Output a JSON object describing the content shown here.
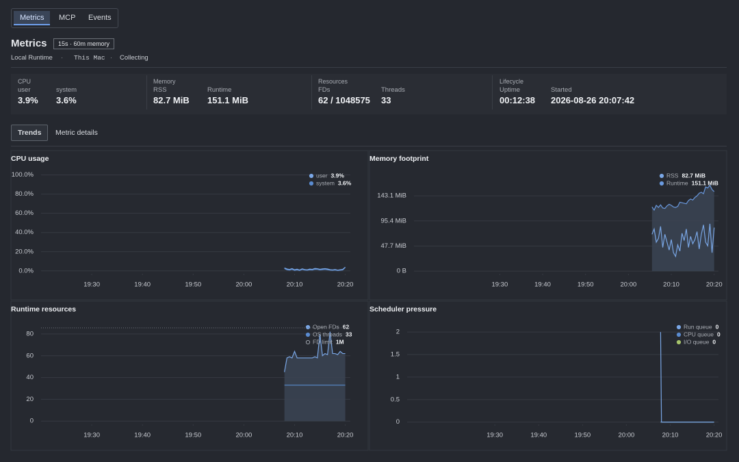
{
  "tabs": [
    "Metrics",
    "MCP",
    "Events"
  ],
  "header": {
    "title": "Metrics",
    "badge": "15s · 60m memory",
    "subtitle": [
      "Local Runtime",
      "This Mac",
      "Collecting"
    ]
  },
  "stats": [
    {
      "label": "CPU",
      "items": [
        {
          "label": "user",
          "value": "3.9%"
        },
        {
          "label": "system",
          "value": "3.6%"
        }
      ]
    },
    {
      "label": "Memory",
      "items": [
        {
          "label": "RSS",
          "value": "82.7 MiB"
        },
        {
          "label": "Runtime",
          "value": "151.1 MiB"
        }
      ]
    },
    {
      "label": "Resources",
      "items": [
        {
          "label": "FDs",
          "value": "62 / 1048575"
        },
        {
          "label": "Threads",
          "value": "33"
        }
      ]
    },
    {
      "label": "Lifecycle",
      "items": [
        {
          "label": "Uptime",
          "value": "00:12:38"
        },
        {
          "label": "Started",
          "value": "2026-08-26 20:07:42"
        }
      ]
    }
  ],
  "subtabs": [
    "Trends",
    "Metric details"
  ],
  "chart_data": [
    {
      "type": "line",
      "title": "CPU usage",
      "x": [
        1208,
        1208.5,
        1209,
        1209.5,
        1210,
        1210.5,
        1211,
        1211.5,
        1212,
        1212.5,
        1213,
        1213.5,
        1214,
        1214.5,
        1215,
        1215.5,
        1216,
        1216.5,
        1217,
        1217.5,
        1218,
        1218.5,
        1219,
        1219.5,
        1220
      ],
      "xlim": [
        1160,
        1221
      ],
      "xticks": [
        {
          "value": 1170,
          "label": "19:30"
        },
        {
          "value": 1180,
          "label": "19:40"
        },
        {
          "value": 1190,
          "label": "19:50"
        },
        {
          "value": 1200,
          "label": "20:00"
        },
        {
          "value": 1210,
          "label": "20:10"
        },
        {
          "value": 1220,
          "label": "20:20"
        }
      ],
      "ylim": [
        -3,
        104
      ],
      "yticks": [
        {
          "value": 0,
          "label": "0.0%"
        },
        {
          "value": 20,
          "label": "20.0%"
        },
        {
          "value": 40,
          "label": "40.0%"
        },
        {
          "value": 60,
          "label": "60.0%"
        },
        {
          "value": 80,
          "label": "80.0%"
        },
        {
          "value": 100,
          "label": "100.0%"
        }
      ],
      "grid": true,
      "legend": "upper right",
      "series": [
        {
          "name": "user",
          "color": "#7aa7e6",
          "latest": {
            "value": 3.9,
            "label": "3.9%"
          },
          "values": [
            3.1,
            2,
            1.5,
            2.4,
            1.2,
            1.8,
            0.9,
            2.2,
            1.4,
            1.1,
            1.9,
            1.6,
            2.5,
            2.3,
            1.7,
            2.1,
            2.4,
            2.0,
            1.3,
            1.0,
            1.5,
            0.8,
            1.2,
            1.6,
            3.9
          ]
        },
        {
          "name": "system",
          "color": "#5a8bd0",
          "latest": {
            "value": 3.6,
            "label": "3.6%"
          },
          "values": [
            2.5,
            1.2,
            0.8,
            1.5,
            0.6,
            1.0,
            0.5,
            1.4,
            0.9,
            0.7,
            1.1,
            0.9,
            1.6,
            1.5,
            1.0,
            1.3,
            1.5,
            1.2,
            0.8,
            0.6,
            0.9,
            0.5,
            0.7,
            1.0,
            3.6
          ]
        }
      ]
    },
    {
      "type": "line",
      "title": "Memory footprint",
      "x": [
        1205.5,
        1206,
        1206.5,
        1207,
        1207.5,
        1208,
        1208.5,
        1209,
        1209.5,
        1210,
        1210.5,
        1211,
        1211.5,
        1212,
        1212.5,
        1213,
        1213.5,
        1214,
        1214.5,
        1215,
        1215.5,
        1216,
        1216.5,
        1217,
        1217.5,
        1218,
        1218.5,
        1219,
        1219.5,
        1220
      ],
      "xlim": [
        1150,
        1221
      ],
      "xticks": [
        {
          "value": 1170,
          "label": "19:30"
        },
        {
          "value": 1180,
          "label": "19:40"
        },
        {
          "value": 1190,
          "label": "19:50"
        },
        {
          "value": 1200,
          "label": "20:00"
        },
        {
          "value": 1210,
          "label": "20:10"
        },
        {
          "value": 1220,
          "label": "20:20"
        }
      ],
      "ylim": [
        -5,
        190
      ],
      "yticks": [
        {
          "value": 0,
          "label": "0 B"
        },
        {
          "value": 47.7,
          "label": "47.7 MiB"
        },
        {
          "value": 95.4,
          "label": "95.4 MiB"
        },
        {
          "value": 143.1,
          "label": "143.1 MiB"
        }
      ],
      "grid": true,
      "legend": "upper right",
      "series": [
        {
          "name": "RSS",
          "color": "#7aa7e6",
          "latest": {
            "value": 82.7,
            "label": "82.7 MiB"
          },
          "values": [
            70,
            80,
            55,
            62,
            85,
            45,
            70,
            55,
            40,
            60,
            35,
            28,
            50,
            38,
            72,
            58,
            80,
            45,
            66,
            52,
            60,
            75,
            42,
            70,
            88,
            55,
            48,
            90,
            35,
            82.7
          ]
        },
        {
          "name": "Runtime",
          "color": "#6a9ae0",
          "area": true,
          "latest": {
            "value": 151.1,
            "label": "151.1 MiB"
          },
          "values": [
            122,
            116,
            125,
            121,
            126,
            120,
            119,
            124,
            127,
            125,
            122,
            121,
            123,
            131,
            130,
            129,
            128,
            134,
            137,
            135,
            140,
            143,
            148,
            150,
            147,
            160,
            158,
            163,
            155,
            151.1
          ]
        }
      ]
    },
    {
      "type": "line",
      "title": "Runtime resources",
      "x": [
        1208,
        1208.5,
        1209,
        1209.5,
        1210,
        1210.5,
        1211,
        1211.5,
        1212,
        1212.5,
        1213,
        1213.5,
        1214,
        1214.5,
        1215,
        1215.5,
        1216,
        1216.5,
        1217,
        1217.5,
        1218,
        1218.5,
        1219,
        1219.5,
        1220
      ],
      "xlim": [
        1160,
        1221
      ],
      "xticks": [
        {
          "value": 1170,
          "label": "19:30"
        },
        {
          "value": 1180,
          "label": "19:40"
        },
        {
          "value": 1190,
          "label": "19:50"
        },
        {
          "value": 1200,
          "label": "20:00"
        },
        {
          "value": 1210,
          "label": "20:10"
        },
        {
          "value": 1220,
          "label": "20:20"
        }
      ],
      "ylim": [
        -3,
        90
      ],
      "yticks": [
        0,
        20,
        40,
        60,
        80
      ],
      "grid": true,
      "legend": "upper right",
      "series": [
        {
          "name": "Open FDs",
          "color": "#7aa7e6",
          "area": true,
          "latest": 62,
          "values": [
            45,
            58,
            59,
            58,
            64,
            58,
            58,
            58,
            58,
            58,
            58,
            58,
            59,
            58,
            80,
            60,
            62,
            61,
            82,
            62,
            62,
            61,
            64,
            62,
            62
          ]
        },
        {
          "name": "OS threads",
          "color": "#5a8bd0",
          "latest": 33,
          "values": [
            33,
            33,
            33,
            33,
            33,
            33,
            33,
            33,
            33,
            33,
            33,
            33,
            33,
            33,
            33,
            33,
            33,
            33,
            33,
            33,
            33,
            33,
            33,
            33,
            33
          ]
        },
        {
          "name": "FD limit",
          "color": "#9aa0a8",
          "hollow": true,
          "latest": {
            "value": 1048575,
            "label": "1M"
          }
        }
      ]
    },
    {
      "type": "line",
      "title": "Scheduler pressure",
      "x": [
        1207.8,
        1208,
        1210,
        1212,
        1214,
        1216,
        1218,
        1220
      ],
      "xlim": [
        1150,
        1221
      ],
      "xticks": [
        {
          "value": 1170,
          "label": "19:30"
        },
        {
          "value": 1180,
          "label": "19:40"
        },
        {
          "value": 1190,
          "label": "19:50"
        },
        {
          "value": 1200,
          "label": "20:00"
        },
        {
          "value": 1210,
          "label": "20:10"
        },
        {
          "value": 1220,
          "label": "20:20"
        }
      ],
      "ylim": [
        -0.05,
        2.2
      ],
      "yticks": [
        0,
        0.5,
        1,
        1.5,
        2
      ],
      "grid": true,
      "legend": "upper right",
      "series": [
        {
          "name": "Run queue",
          "color": "#7aa7e6",
          "latest": 0,
          "values": [
            2,
            0,
            0,
            0,
            0,
            0,
            0,
            0
          ]
        },
        {
          "name": "CPU queue",
          "color": "#5a8bd0",
          "latest": 0,
          "values": [
            0,
            0,
            0,
            0,
            0,
            0,
            0,
            0
          ]
        },
        {
          "name": "I/O queue",
          "color": "#a6c46b",
          "latest": 0,
          "values": [
            0,
            0,
            0,
            0,
            0,
            0,
            0,
            0
          ]
        }
      ]
    }
  ]
}
